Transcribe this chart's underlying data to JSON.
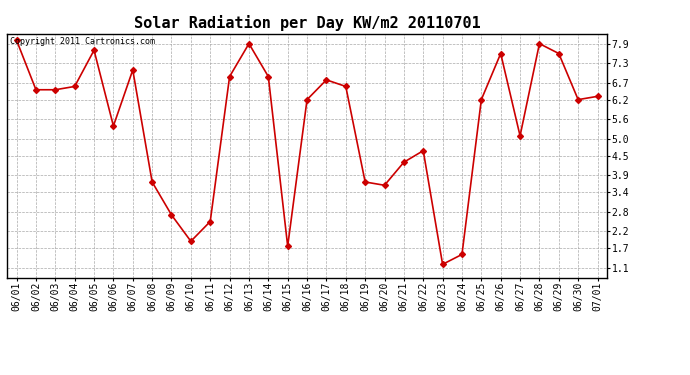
{
  "title": "Solar Radiation per Day KW/m2 20110701",
  "copyright_text": "Copyright 2011 Cartronics.com",
  "dates": [
    "06/01",
    "06/02",
    "06/03",
    "06/04",
    "06/05",
    "06/06",
    "06/07",
    "06/08",
    "06/09",
    "06/10",
    "06/11",
    "06/12",
    "06/13",
    "06/14",
    "06/15",
    "06/16",
    "06/17",
    "06/18",
    "06/19",
    "06/20",
    "06/21",
    "06/22",
    "06/23",
    "06/24",
    "06/25",
    "06/26",
    "06/27",
    "06/28",
    "06/29",
    "06/30",
    "07/01"
  ],
  "values": [
    8.0,
    6.5,
    6.5,
    6.6,
    7.7,
    5.4,
    7.1,
    3.7,
    2.7,
    1.9,
    2.5,
    6.9,
    7.9,
    6.9,
    1.75,
    6.2,
    6.8,
    6.6,
    3.7,
    3.6,
    4.3,
    4.65,
    1.2,
    1.5,
    6.2,
    7.6,
    5.1,
    7.9,
    7.6,
    6.2,
    6.3
  ],
  "line_color": "#cc0000",
  "marker": "D",
  "marker_size": 3,
  "bg_color": "#ffffff",
  "grid_color": "#aaaaaa",
  "yticks": [
    1.1,
    1.7,
    2.2,
    2.8,
    3.4,
    3.9,
    4.5,
    5.0,
    5.6,
    6.2,
    6.7,
    7.3,
    7.9
  ],
  "ylim": [
    0.8,
    8.2
  ],
  "title_fontsize": 11,
  "tick_fontsize": 7,
  "copyright_fontsize": 6
}
